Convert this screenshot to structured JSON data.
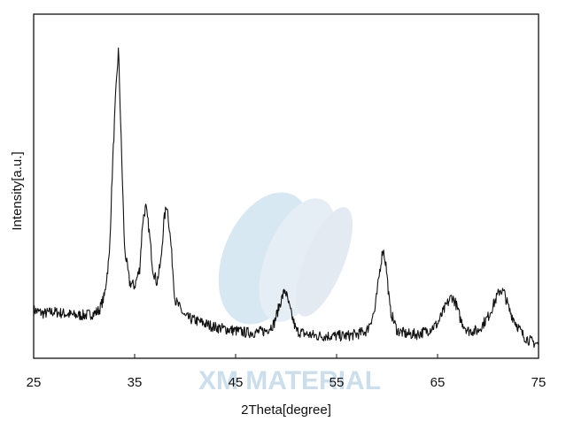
{
  "chart_data": {
    "type": "line",
    "title": "",
    "xlabel": "2Theta[degree]",
    "ylabel": "Intensity[a.u.]",
    "xlim": [
      25,
      75
    ],
    "ylim": [
      0,
      100
    ],
    "x_ticks": [
      25,
      35,
      45,
      55,
      65,
      75
    ],
    "y_ticks": [],
    "grid": false,
    "legend": "none",
    "line_color": "#111111",
    "series": [
      {
        "x": [
          25,
          26,
          27,
          28,
          29,
          30,
          31,
          31.5,
          32,
          32.5,
          32.8,
          33.1,
          33.4,
          33.7,
          34,
          34.5,
          35,
          35.5,
          35.8,
          36.1,
          36.4,
          36.8,
          37.2,
          37.6,
          37.9,
          38.2,
          38.6,
          39,
          40,
          41,
          42,
          43,
          44,
          45,
          46,
          47,
          48,
          48.8,
          49.4,
          49.9,
          50.4,
          51,
          52,
          53,
          54,
          55,
          56,
          57,
          58,
          58.8,
          59.3,
          59.6,
          59.9,
          60.3,
          61,
          62,
          63,
          64,
          65,
          65.8,
          66.4,
          66.8,
          67.3,
          68,
          69,
          70,
          70.6,
          71.2,
          71.6,
          72.1,
          72.8,
          73.5,
          74.2,
          75
        ],
        "y": [
          14,
          13,
          13.5,
          13,
          12.5,
          12.5,
          13,
          14,
          18,
          30,
          55,
          75,
          90,
          60,
          32,
          22,
          21,
          26,
          40,
          44,
          38,
          26,
          22,
          28,
          40,
          45,
          33,
          17,
          12,
          11,
          10,
          9,
          8.5,
          8,
          7.5,
          7.5,
          8,
          10,
          16,
          20,
          14,
          8,
          7,
          6.5,
          6.5,
          6.5,
          6.5,
          7,
          8,
          14,
          26,
          32,
          27,
          14,
          8,
          7,
          7,
          8,
          10,
          15,
          18,
          16,
          11,
          8,
          8,
          12,
          16,
          20,
          19,
          14,
          10,
          6.5,
          5,
          4
        ]
      }
    ]
  },
  "watermark": {
    "text": "XM MATERIAL",
    "color": "#b9d3e6"
  }
}
